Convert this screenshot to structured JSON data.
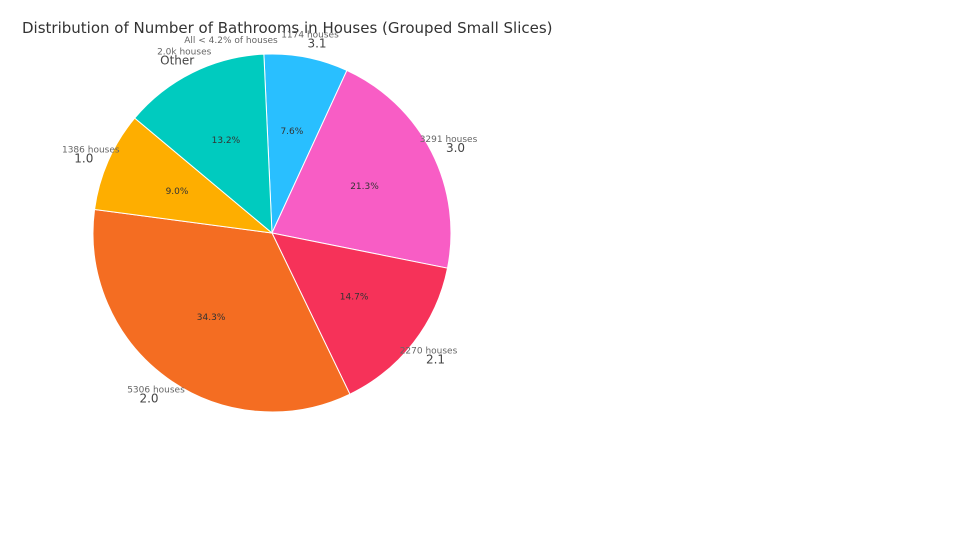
{
  "chart_data": {
    "type": "pie",
    "title": "Distribution of Number of Bathrooms in Houses (Grouped Small Slices)",
    "slices": [
      {
        "category": "3.1",
        "count_label": "1174 houses",
        "percent_label": "7.6%",
        "percent": 7.6,
        "color": "#29bfff"
      },
      {
        "category": "3.0",
        "count_label": "3291 houses",
        "percent_label": "21.3%",
        "percent": 21.3,
        "color": "#f85dc5"
      },
      {
        "category": "2.1",
        "count_label": "2270 houses",
        "percent_label": "14.7%",
        "percent": 14.7,
        "color": "#f63259"
      },
      {
        "category": "2.0",
        "count_label": "5306 houses",
        "percent_label": "34.3%",
        "percent": 34.3,
        "color": "#f46d22"
      },
      {
        "category": "1.0",
        "count_label": "1386 houses",
        "percent_label": "9.0%",
        "percent": 9.0,
        "color": "#feae00"
      },
      {
        "category": "Other",
        "count_label": "2.0k houses",
        "percent_label": "13.2%",
        "percent": 13.2,
        "color": "#00cbbf"
      }
    ],
    "note": "All < 4.2% of houses"
  }
}
